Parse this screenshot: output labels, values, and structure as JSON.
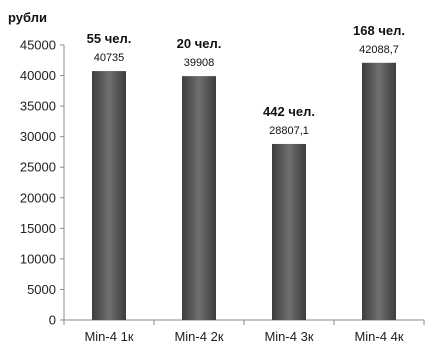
{
  "chart_data": {
    "type": "bar",
    "ylabel": "рубли",
    "ylim": [
      0,
      45000
    ],
    "yticks": [
      0,
      5000,
      10000,
      15000,
      20000,
      25000,
      30000,
      35000,
      40000,
      45000
    ],
    "categories": [
      "Min-4 1к",
      "Min-4 2к",
      "Min-4 3к",
      "Min-4 4к"
    ],
    "values": [
      40735,
      39908,
      28807.1,
      42088.7
    ],
    "value_labels": [
      "40735",
      "39908",
      "28807,1",
      "42088,7"
    ],
    "annotations": [
      "55 чел.",
      "20 чел.",
      "442 чел.",
      "168 чел."
    ],
    "grid": false,
    "legend": "none",
    "colors": {
      "bar_top": "#3a3a3a",
      "bar_mid": "#6e6e6e",
      "axis": "#888888"
    }
  }
}
